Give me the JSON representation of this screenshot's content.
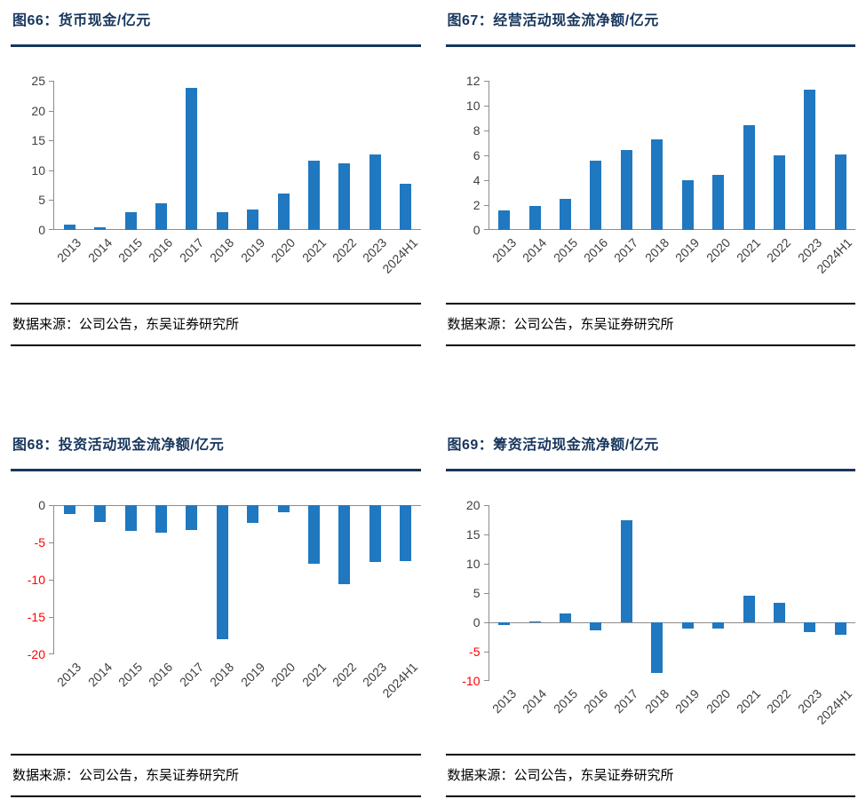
{
  "source": "数据来源：公司公告，东吴证券研究所",
  "colors": {
    "bar": "#1F78C0",
    "title": "#17365D",
    "title_rule": "#17365D",
    "axis": "#8C8C8C",
    "tick_label": "#404040",
    "negative_tick_label": "#FF0000",
    "divider": "#000000",
    "background": "#FFFFFF"
  },
  "chart_data": [
    {
      "type": "bar",
      "title": "图66：货币现金/亿元",
      "categories": [
        "2013",
        "2014",
        "2015",
        "2016",
        "2017",
        "2018",
        "2019",
        "2020",
        "2021",
        "2022",
        "2023",
        "2024H1"
      ],
      "values": [
        0.9,
        0.5,
        3.0,
        4.4,
        23.8,
        3.0,
        3.4,
        6.1,
        11.6,
        11.1,
        12.7,
        7.7
      ],
      "ylim": [
        0,
        25
      ],
      "ytick_step": 5,
      "grid": false,
      "legend": false
    },
    {
      "type": "bar",
      "title": "图67：经营活动现金流净额/亿元",
      "categories": [
        "2013",
        "2014",
        "2015",
        "2016",
        "2017",
        "2018",
        "2019",
        "2020",
        "2021",
        "2022",
        "2023",
        "2024H1"
      ],
      "values": [
        1.6,
        1.9,
        2.5,
        5.6,
        6.4,
        7.3,
        4.0,
        4.4,
        8.4,
        6.0,
        11.3,
        6.1
      ],
      "ylim": [
        0,
        12
      ],
      "ytick_step": 2,
      "grid": false,
      "legend": false
    },
    {
      "type": "bar",
      "title": "图68：投资活动现金流净额/亿元",
      "categories": [
        "2013",
        "2014",
        "2015",
        "2016",
        "2017",
        "2018",
        "2019",
        "2020",
        "2021",
        "2022",
        "2023",
        "2024H1"
      ],
      "values": [
        -1.2,
        -2.3,
        -3.4,
        -3.7,
        -3.3,
        -18.0,
        -2.4,
        -0.9,
        -7.8,
        -10.6,
        -7.6,
        -7.5
      ],
      "ylim": [
        -20,
        0
      ],
      "ytick_step": 5,
      "grid": false,
      "legend": false
    },
    {
      "type": "bar",
      "title": "图69：筹资活动现金流净额/亿元",
      "categories": [
        "2013",
        "2014",
        "2015",
        "2016",
        "2017",
        "2018",
        "2019",
        "2020",
        "2021",
        "2022",
        "2023",
        "2024H1"
      ],
      "values": [
        -0.4,
        0.1,
        1.5,
        -1.3,
        17.5,
        -8.6,
        -1.0,
        -1.1,
        4.5,
        3.4,
        -1.6,
        -2.1
      ],
      "ylim": [
        -10,
        20
      ],
      "ytick_step": 5,
      "grid": false,
      "legend": false
    }
  ]
}
